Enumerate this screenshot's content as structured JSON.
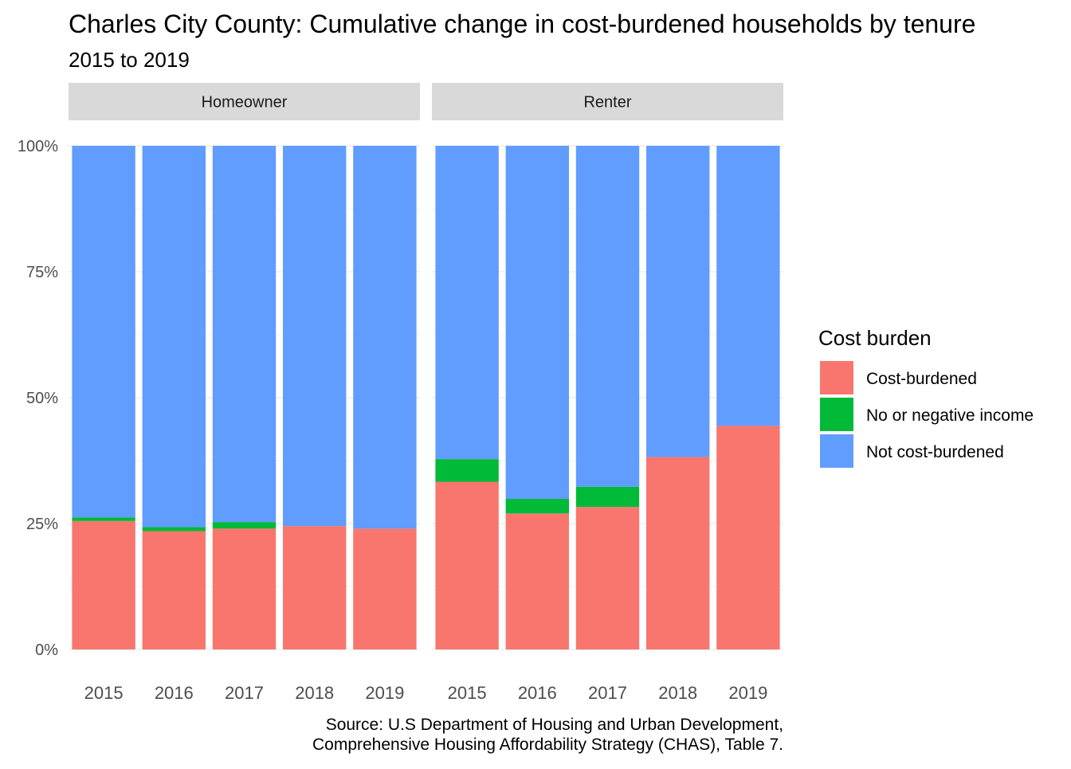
{
  "chart_data": {
    "type": "bar",
    "stacked": true,
    "title": "Charles City County: Cumulative change in cost-burdened households by tenure",
    "subtitle": "2015 to 2019",
    "caption_lines": [
      "Source: U.S Department of Housing and Urban Development,",
      "Comprehensive Housing Affordability Strategy (CHAS), Table 7."
    ],
    "y_ticks": [
      "0%",
      "25%",
      "50%",
      "75%",
      "100%"
    ],
    "ylim": [
      0,
      1
    ],
    "grid": true,
    "legend": {
      "title": "Cost burden",
      "position": "right",
      "entries": [
        {
          "label": "Cost-burdened",
          "color": "#F8766D"
        },
        {
          "label": "No or negative income",
          "color": "#00BA38"
        },
        {
          "label": "Not cost-burdened",
          "color": "#619CFF"
        }
      ]
    },
    "categories": [
      "2015",
      "2016",
      "2017",
      "2018",
      "2019"
    ],
    "panels": [
      {
        "name": "Homeowner",
        "series": [
          {
            "name": "Cost-burdened",
            "values": [
              0.255,
              0.235,
              0.24,
              0.245,
              0.24
            ]
          },
          {
            "name": "No or negative income",
            "values": [
              0.007,
              0.008,
              0.013,
              0.0,
              0.0
            ]
          },
          {
            "name": "Not cost-burdened",
            "values": [
              0.738,
              0.757,
              0.747,
              0.755,
              0.76
            ]
          }
        ]
      },
      {
        "name": "Renter",
        "series": [
          {
            "name": "Cost-burdened",
            "values": [
              0.333,
              0.27,
              0.283,
              0.382,
              0.444
            ]
          },
          {
            "name": "No or negative income",
            "values": [
              0.045,
              0.029,
              0.04,
              0.0,
              0.0
            ]
          },
          {
            "name": "Not cost-burdened",
            "values": [
              0.622,
              0.701,
              0.677,
              0.618,
              0.556
            ]
          }
        ]
      }
    ]
  }
}
